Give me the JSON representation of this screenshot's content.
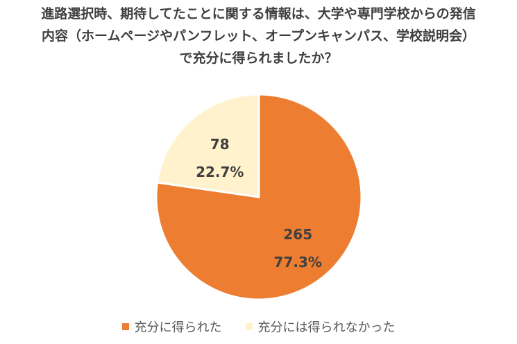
{
  "title_lines": [
    "進路選択時、期待してたことに関する情報は、大学や専門学校からの発信",
    "内容（ホームページやパンフレット、オープンキャンパス、学校説明会）",
    "で充分に得られましたか？"
  ],
  "chart_data": {
    "type": "pie",
    "title": "進路選択時、期待してたことに関する情報は、大学や専門学校からの発信内容（ホームページやパンフレット、オープンキャンパス、学校説明会）で充分に得られましたか？",
    "slices": [
      {
        "label": "充分に得られた",
        "value": 265,
        "percent_label": "77.3%",
        "color": "#ED7D31"
      },
      {
        "label": "充分には得られなかった",
        "value": 78,
        "percent_label": "22.7%",
        "color": "#FFF2CC"
      }
    ],
    "legend_position": "bottom"
  }
}
